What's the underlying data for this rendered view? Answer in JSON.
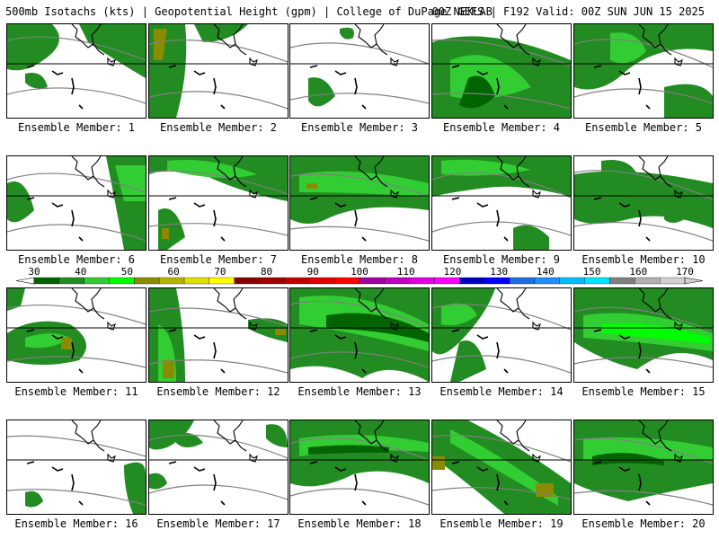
{
  "header": {
    "left": "500mb Isotachs (kts) | Geopotential Height (gpm) | College of DuPage NEXLAB",
    "right": "00Z GEFS | F192 Valid: 00Z SUN JUN 15 2025"
  },
  "members": [
    "Ensemble Member: 1",
    "Ensemble Member: 2",
    "Ensemble Member: 3",
    "Ensemble Member: 4",
    "Ensemble Member: 5",
    "Ensemble Member: 6",
    "Ensemble Member: 7",
    "Ensemble Member: 8",
    "Ensemble Member: 9",
    "Ensemble Member: 10",
    "Ensemble Member: 11",
    "Ensemble Member: 12",
    "Ensemble Member: 13",
    "Ensemble Member: 14",
    "Ensemble Member: 15",
    "Ensemble Member: 16",
    "Ensemble Member: 17",
    "Ensemble Member: 18",
    "Ensemble Member: 19",
    "Ensemble Member: 20"
  ],
  "colorbar": {
    "ticks": [
      "30",
      "40",
      "50",
      "60",
      "70",
      "80",
      "90",
      "100",
      "110",
      "120",
      "130",
      "140",
      "150",
      "160",
      "170"
    ],
    "colors": [
      "#006400",
      "#228b22",
      "#32cd32",
      "#00ff00",
      "#8b8b00",
      "#b5b500",
      "#e0e000",
      "#ffff00",
      "#8b0000",
      "#a50000",
      "#c00000",
      "#e00000",
      "#ff0000",
      "#a000a0",
      "#c000c0",
      "#e000e0",
      "#ff00ff",
      "#0000c0",
      "#0000ff",
      "#1e6fe0",
      "#1e90ff",
      "#00bfff",
      "#00e5ff",
      "#808080",
      "#b0b0b0",
      "#d0d0d0"
    ]
  },
  "colors": {
    "dark_green": "#006400",
    "mid_green": "#228b22",
    "light_green": "#32cd32",
    "bright_green": "#00ff00",
    "olive": "#8b8b00",
    "contour": "#808080",
    "coast": "#000000"
  }
}
